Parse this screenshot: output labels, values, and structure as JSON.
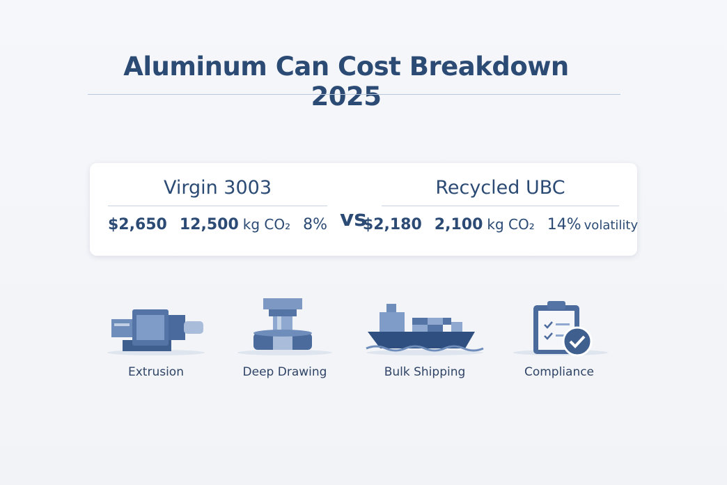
{
  "header": {
    "title": "Aluminum Can Cost Breakdown 2025"
  },
  "comparison": {
    "left": {
      "name": "Virgin 3003",
      "price": "$2,650",
      "emissions": "12,500",
      "emissions_unit": "kg CO₂",
      "volatility": "8%"
    },
    "separator": "vs",
    "right": {
      "name": "Recycled UBC",
      "price": "$2,180",
      "emissions": "2,100",
      "emissions_unit": "kg CO₂",
      "volatility": "14%",
      "volatility_label": "volatility"
    }
  },
  "stages": [
    {
      "label": "Extrusion"
    },
    {
      "label": "Deep Drawing"
    },
    {
      "label": "Bulk Shipping"
    },
    {
      "label": "Compliance"
    }
  ]
}
